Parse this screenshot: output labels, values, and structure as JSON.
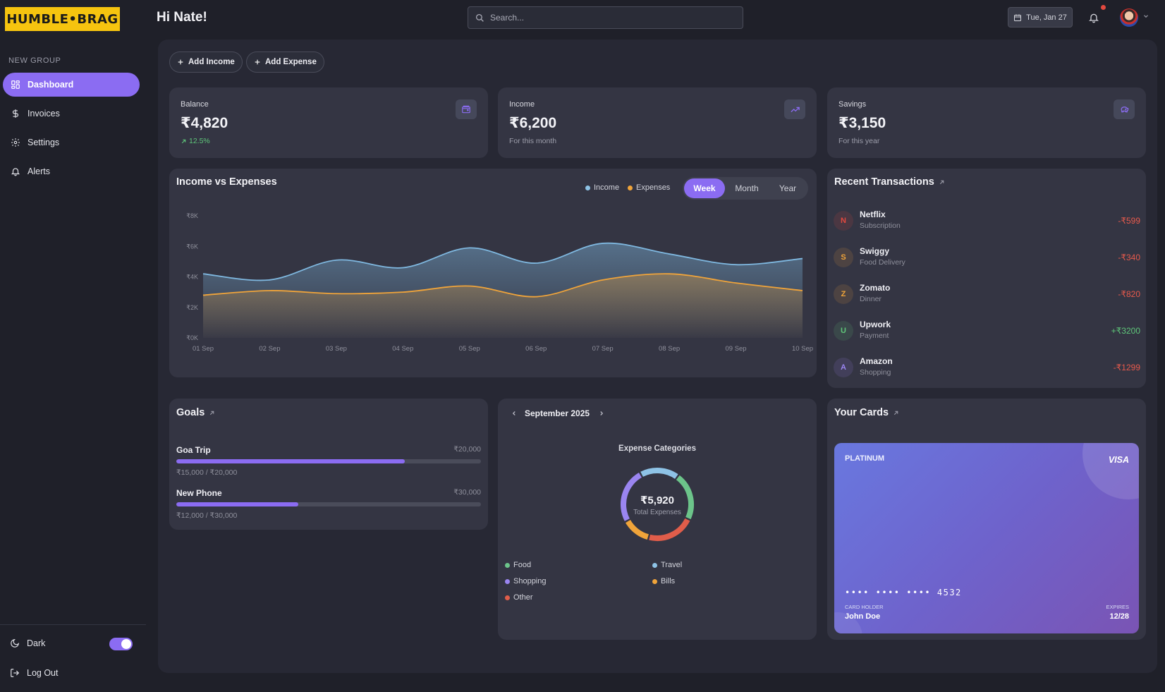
{
  "brand": {
    "logo_text": "HUMBLE•BRAG"
  },
  "header": {
    "greeting": "Hi Nate!",
    "search_placeholder": "Search...",
    "date_label": "Tue, Jan 27"
  },
  "sidebar": {
    "group_label": "NEW GROUP",
    "items": [
      {
        "label": "Dashboard",
        "icon": "dashboard-icon",
        "active": true
      },
      {
        "label": "Invoices",
        "icon": "dollar-icon",
        "active": false
      },
      {
        "label": "Settings",
        "icon": "gear-icon",
        "active": false
      },
      {
        "label": "Alerts",
        "icon": "bell-icon",
        "active": false
      }
    ],
    "theme_label": "Dark",
    "theme_toggle_on": true,
    "logout_label": "Log Out"
  },
  "actions": {
    "add_income": "Add Income",
    "add_expense": "Add Expense"
  },
  "stats": [
    {
      "label": "Balance",
      "value": "₹4,820",
      "sub": "12.5%",
      "icon": "wallet-icon"
    },
    {
      "label": "Income",
      "value": "₹6,200",
      "sub": "For this month",
      "icon": "trending-up-icon"
    },
    {
      "label": "Savings",
      "value": "₹3,150",
      "sub": "For this year",
      "icon": "piggy-bank-icon"
    }
  ],
  "income_chart": {
    "title": "Income vs Expenses",
    "legend": {
      "income": "Income",
      "expenses": "Expenses"
    },
    "periods": [
      "Week",
      "Month",
      "Year"
    ],
    "active_period": "Week"
  },
  "chart_data": {
    "type": "area",
    "title": "Income vs Expenses",
    "x": [
      "01 Sep",
      "02 Sep",
      "03 Sep",
      "04 Sep",
      "05 Sep",
      "06 Sep",
      "07 Sep",
      "08 Sep",
      "09 Sep",
      "10 Sep"
    ],
    "y_ticks": [
      "₹0K",
      "₹2K",
      "₹4K",
      "₹6K",
      "₹8K"
    ],
    "ylim": [
      0,
      8000
    ],
    "series": [
      {
        "name": "Income",
        "color": "#7fb8e0",
        "values": [
          4200,
          3800,
          5100,
          4600,
          5900,
          4900,
          6200,
          5500,
          4800,
          5200
        ]
      },
      {
        "name": "Expenses",
        "color": "#f0a43a",
        "values": [
          2800,
          3100,
          2900,
          3000,
          3400,
          2700,
          3800,
          4200,
          3600,
          3100
        ]
      }
    ],
    "grid": false,
    "legend_position": "top-right"
  },
  "transactions": {
    "title": "Recent Transactions",
    "items": [
      {
        "initial": "N",
        "name": "Netflix",
        "category": "Subscription",
        "amount": "-₹599",
        "type": "debit",
        "color": "#e2493f"
      },
      {
        "initial": "S",
        "name": "Swiggy",
        "category": "Food Delivery",
        "amount": "-₹340",
        "type": "debit",
        "color": "#f0a43a"
      },
      {
        "initial": "Z",
        "name": "Zomato",
        "category": "Dinner",
        "amount": "-₹820",
        "type": "debit",
        "color": "#f0a43a"
      },
      {
        "initial": "U",
        "name": "Upwork",
        "category": "Payment",
        "amount": "+₹3200",
        "type": "credit",
        "color": "#5fc77a"
      },
      {
        "initial": "A",
        "name": "Amazon",
        "category": "Shopping",
        "amount": "-₹1299",
        "type": "debit",
        "color": "#9a85f0"
      }
    ]
  },
  "goals": {
    "title": "Goals",
    "items": [
      {
        "name": "Goa Trip",
        "target": "₹20,000",
        "progress_text": "₹15,000 / ₹20,000",
        "fraction": 0.75
      },
      {
        "name": "New Phone",
        "target": "₹30,000",
        "progress_text": "₹12,000 / ₹30,000",
        "fraction": 0.4
      }
    ]
  },
  "expense_categories": {
    "month_label": "September 2025",
    "title": "Expense Categories",
    "total": "₹5,920",
    "total_label": "Total Expenses",
    "categories": [
      {
        "name": "Food",
        "color": "#6cc48a",
        "share": 0.22
      },
      {
        "name": "Travel",
        "color": "#8ec3e6",
        "share": 0.18
      },
      {
        "name": "Shopping",
        "color": "#9a85f0",
        "share": 0.25
      },
      {
        "name": "Bills",
        "color": "#f0a43a",
        "share": 0.13
      },
      {
        "name": "Other",
        "color": "#e05d4a",
        "share": 0.22
      }
    ]
  },
  "cards": {
    "title": "Your Cards",
    "tier": "PLATINUM",
    "network": "VISA",
    "number": "•••• •••• •••• 4532",
    "holder_label": "CARD HOLDER",
    "holder": "John Doe",
    "expires_label": "EXPIRES",
    "expires": "12/28"
  },
  "colors": {
    "accent": "#8b6cf2",
    "debit": "#e85a4c",
    "credit": "#5fc77a",
    "logo_bg": "#f6c40f"
  }
}
